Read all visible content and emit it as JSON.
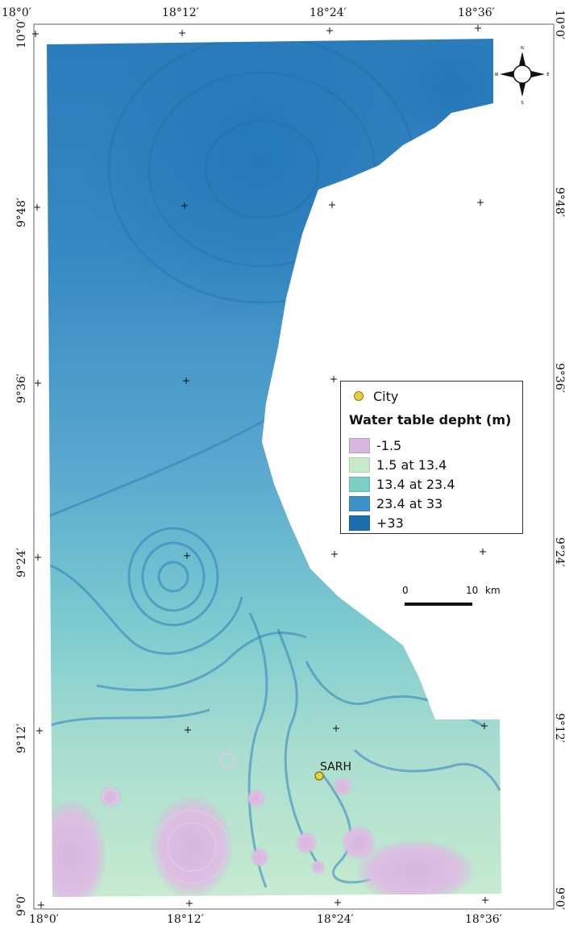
{
  "map": {
    "top_labels": [
      "18°0′",
      "18°12′",
      "18°24′",
      "18°36′"
    ],
    "bottom_labels": [
      "18°0′",
      "18°12′",
      "18°24′",
      "18°36′"
    ],
    "left_labels": [
      "10°0′",
      "9°48′",
      "9°36′",
      "9°24′",
      "9°12′",
      "9°0′"
    ],
    "right_labels": [
      "10°0′",
      "9°48′",
      "9°36′",
      "9°24′",
      "9°12′",
      "9°0′"
    ]
  },
  "legend": {
    "city_label": "City",
    "title": "Water table depht (m)",
    "classes": [
      {
        "label": "-1.5",
        "color": "#d7b6df"
      },
      {
        "label": "1.5 at 13.4",
        "color": "#c6ebc8"
      },
      {
        "label": "13.4 at 23.4",
        "color": "#7ccfc4"
      },
      {
        "label": "23.4 at 33",
        "color": "#3d93c9"
      },
      {
        "label": "+33",
        "color": "#1b6fb0"
      }
    ]
  },
  "scale_bar": {
    "start": "0",
    "end": "10",
    "unit": "km"
  },
  "city": {
    "name": "SARH",
    "color": "#e6d23a"
  },
  "north_arrow": {
    "n": "N",
    "s": "S",
    "e": "E",
    "w": "W"
  }
}
